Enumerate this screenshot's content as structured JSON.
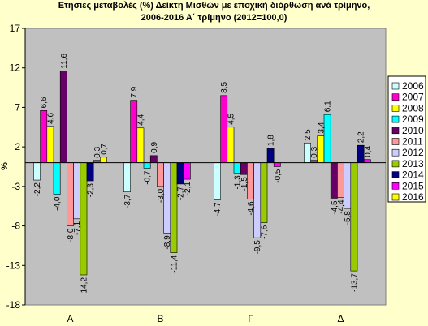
{
  "chart_data": {
    "type": "bar",
    "title_line1": "Ετήσιες μεταβολές (%) Δείκτη Μισθών  με εποχική διόρθωση ανά τρίμηνο,",
    "title_line2": "2006-2016 Α΄ τρίμηνο (2012=100,0)",
    "ylabel": "%",
    "ylim": [
      -18,
      17
    ],
    "yticks": [
      17,
      12,
      7,
      2,
      -3,
      -8,
      -13,
      -18
    ],
    "categories": [
      "Α",
      "Β",
      "Γ",
      "Δ"
    ],
    "legend_position": "right",
    "grid": false,
    "series": [
      {
        "name": "2006",
        "color": "#ccffff",
        "values": [
          -2.2,
          -3.7,
          -4.7,
          2.5
        ],
        "labels": [
          "-2,2",
          "-3,7",
          "-4,7",
          "2,5"
        ]
      },
      {
        "name": "2007",
        "color": "#ff00cc",
        "values": [
          6.6,
          7.9,
          8.5,
          0.3
        ],
        "labels": [
          "6,6",
          "7,9",
          "8,5",
          "0,3"
        ]
      },
      {
        "name": "2008",
        "color": "#ffff00",
        "values": [
          4.6,
          4.4,
          4.5,
          3.4
        ],
        "labels": [
          "4,6",
          "4,4",
          "4,5",
          "3,4"
        ]
      },
      {
        "name": "2009",
        "color": "#00ffff",
        "values": [
          -4.0,
          -0.7,
          -1.3,
          6.1
        ],
        "labels": [
          "-4,0",
          "-0,7",
          "-1,3",
          "6,1"
        ]
      },
      {
        "name": "2010",
        "color": "#660066",
        "values": [
          11.6,
          0.9,
          -1.5,
          -4.5
        ],
        "labels": [
          "11,6",
          "0,9",
          "-1,5",
          "-4,5"
        ]
      },
      {
        "name": "2011",
        "color": "#ff9999",
        "values": [
          -8.0,
          -3.0,
          -4.6,
          -4.4
        ],
        "labels": [
          "-8,0",
          "-3,0",
          "-4,6",
          "-4,4"
        ]
      },
      {
        "name": "2012",
        "color": "#ccccff",
        "values": [
          -7.1,
          -8.9,
          -9.5,
          -5.8
        ],
        "labels": [
          "-7,1",
          "-8,9",
          "-9,5",
          "-5,8"
        ]
      },
      {
        "name": "2013",
        "color": "#99cc00",
        "values": [
          -14.2,
          -11.4,
          -7.6,
          -13.7
        ],
        "labels": [
          "-14,2",
          "-11,4",
          "-7,6",
          "-13,7"
        ]
      },
      {
        "name": "2014",
        "color": "#000080",
        "values": [
          -2.3,
          -2.7,
          1.8,
          2.2
        ],
        "labels": [
          "-2,3",
          "-2,7",
          "1,8",
          "2,2"
        ]
      },
      {
        "name": "2015",
        "color": "#ff00ff",
        "values": [
          0.3,
          -2.1,
          -0.5,
          0.4
        ],
        "labels": [
          "0,3",
          "-2,1",
          "-0,5",
          "0,4"
        ]
      },
      {
        "name": "2016",
        "color": "#ffff00",
        "values": [
          0.7,
          null,
          null,
          null
        ],
        "labels": [
          "0,7",
          "",
          "",
          ""
        ]
      }
    ]
  }
}
